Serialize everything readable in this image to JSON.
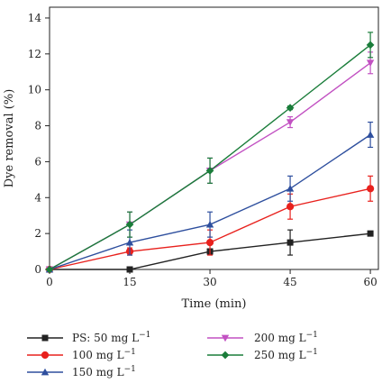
{
  "chart_data": {
    "type": "line",
    "title": "",
    "xlabel": "Time (min)",
    "ylabel": "Dye removal (%)",
    "xlim": [
      0,
      61.5
    ],
    "ylim": [
      0,
      14.6
    ],
    "xticks": [
      0,
      15,
      30,
      45,
      60
    ],
    "yticks": [
      0,
      2,
      4,
      6,
      8,
      10,
      12,
      14
    ],
    "grid": false,
    "legend_position": "bottom",
    "x": [
      0,
      15,
      30,
      45,
      60
    ],
    "series": [
      {
        "name_main": "PS: 50 mg L",
        "name_sup": "−1",
        "color": "#222222",
        "marker": "square",
        "values": [
          0,
          0,
          1.0,
          1.5,
          2.0
        ],
        "errors": [
          0,
          0,
          0.15,
          0.7,
          0.1
        ]
      },
      {
        "name_main": "100 mg L",
        "name_sup": "−1",
        "color": "#e8211d",
        "marker": "circle",
        "values": [
          0,
          1.0,
          1.5,
          3.5,
          4.5
        ],
        "errors": [
          0,
          0.2,
          0.7,
          0.7,
          0.7
        ]
      },
      {
        "name_main": "150 mg L",
        "name_sup": "−1",
        "color": "#2e4f9e",
        "marker": "triangle-up",
        "values": [
          0,
          1.5,
          2.5,
          4.5,
          7.5
        ],
        "errors": [
          0,
          0.7,
          0.7,
          0.7,
          0.7
        ]
      },
      {
        "name_main": "200 mg L",
        "name_sup": "−1",
        "color": "#c251c2",
        "marker": "triangle-down",
        "values": [
          0,
          2.5,
          5.5,
          8.2,
          11.5
        ],
        "errors": [
          0,
          0.7,
          0.7,
          0.3,
          0.6
        ]
      },
      {
        "name_main": "250 mg L",
        "name_sup": "−1",
        "color": "#1a7d3a",
        "marker": "diamond",
        "values": [
          0,
          2.5,
          5.5,
          9.0,
          12.5
        ],
        "errors": [
          0,
          0.7,
          0.7,
          0.1,
          0.7
        ]
      }
    ]
  }
}
